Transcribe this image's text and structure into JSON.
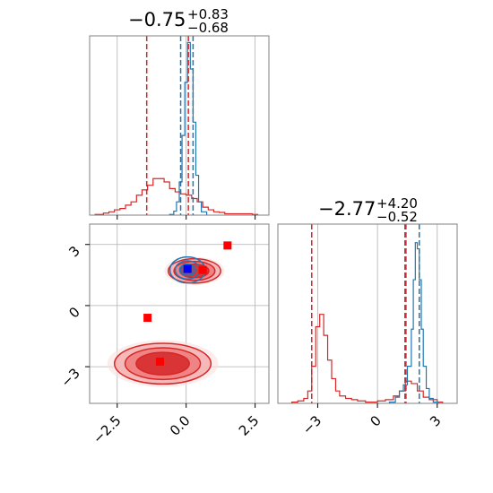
{
  "colors": {
    "red": "#d62728",
    "blue": "#1f77b4",
    "grid": "#b0b0b0",
    "marker": "#ff0000",
    "marker_blue": "#0000ff"
  },
  "chart_data": {
    "type": "corner",
    "parameters": [
      {
        "title": {
          "median": "−0.75",
          "upper": "+0.83",
          "lower": "−0.68"
        },
        "xlim": [
          -3.5,
          3.0
        ],
        "ticks": [
          -2.5,
          0.0,
          2.5
        ],
        "tick_labels": [
          "−2.5",
          "0.0",
          "2.5"
        ],
        "red_lines": [
          -1.43,
          0.08
        ],
        "blue_lines": [
          -0.2,
          0.25
        ]
      },
      {
        "title": {
          "median": "−2.77",
          "upper": "+4.20",
          "lower": "−0.52"
        },
        "xlim": [
          -5.0,
          4.0
        ],
        "ticks": [
          -3,
          0,
          3
        ],
        "tick_labels": [
          "−3",
          "0",
          "3"
        ],
        "red_lines": [
          -3.3,
          1.43
        ],
        "blue_lines": [
          1.38,
          2.1
        ]
      }
    ],
    "joint": {
      "ylim": [
        -4.8,
        4.0
      ],
      "yticks": [
        3,
        0,
        -3
      ],
      "ytick_labels": [
        "3",
        "0",
        "−3"
      ],
      "red_markers": [
        [
          1.5,
          2.95
        ],
        [
          0.6,
          1.75
        ],
        [
          -1.4,
          -0.6
        ],
        [
          -0.95,
          -2.75
        ]
      ],
      "blue_marker": [
        0.05,
        1.8
      ],
      "red_clusters": [
        {
          "cx": -0.85,
          "cy": -2.85,
          "rx": 1.75,
          "ry": 1.0
        },
        {
          "cx": 0.3,
          "cy": 1.7,
          "rx": 0.95,
          "ry": 0.6
        }
      ],
      "blue_cluster": {
        "cx": 0.05,
        "cy": 1.75,
        "rx": 0.4,
        "ry": 0.4
      }
    },
    "hist1_red": [
      [
        -3.3,
        0.01
      ],
      [
        -3.0,
        0.03
      ],
      [
        -2.8,
        0.05
      ],
      [
        -2.6,
        0.08
      ],
      [
        -2.4,
        0.1
      ],
      [
        -2.2,
        0.15
      ],
      [
        -2.0,
        0.2
      ],
      [
        -1.8,
        0.3
      ],
      [
        -1.6,
        0.38
      ],
      [
        -1.4,
        0.45
      ],
      [
        -1.2,
        0.55
      ],
      [
        -1.0,
        0.55
      ],
      [
        -0.8,
        0.5
      ],
      [
        -0.6,
        0.4
      ],
      [
        -0.4,
        0.35
      ],
      [
        -0.2,
        0.32
      ],
      [
        0.0,
        0.3
      ],
      [
        0.2,
        0.25
      ],
      [
        0.4,
        0.2
      ],
      [
        0.6,
        0.12
      ],
      [
        0.8,
        0.08
      ],
      [
        1.0,
        0.05
      ],
      [
        1.2,
        0.04
      ],
      [
        1.4,
        0.02
      ],
      [
        1.7,
        0.02
      ],
      [
        2.0,
        0.02
      ],
      [
        2.4,
        0.01
      ]
    ],
    "hist1_blue": [
      [
        -0.6,
        0.01
      ],
      [
        -0.45,
        0.06
      ],
      [
        -0.35,
        0.2
      ],
      [
        -0.25,
        0.5
      ],
      [
        -0.15,
        1.2
      ],
      [
        -0.05,
        2.0
      ],
      [
        0.05,
        2.6
      ],
      [
        0.15,
        2.2
      ],
      [
        0.25,
        1.4
      ],
      [
        0.35,
        0.6
      ],
      [
        0.45,
        0.2
      ],
      [
        0.55,
        0.05
      ]
    ],
    "hist2_red": [
      [
        -4.3,
        0.01
      ],
      [
        -4.0,
        0.02
      ],
      [
        -3.7,
        0.04
      ],
      [
        -3.5,
        0.1
      ],
      [
        -3.3,
        0.3
      ],
      [
        -3.1,
        0.62
      ],
      [
        -2.9,
        0.72
      ],
      [
        -2.7,
        0.55
      ],
      [
        -2.5,
        0.35
      ],
      [
        -2.3,
        0.2
      ],
      [
        -2.1,
        0.1
      ],
      [
        -1.9,
        0.06
      ],
      [
        -1.6,
        0.04
      ],
      [
        -1.3,
        0.03
      ],
      [
        -1.0,
        0.02
      ],
      [
        -0.6,
        0.01
      ],
      [
        0.0,
        0.02
      ],
      [
        0.4,
        0.03
      ],
      [
        0.8,
        0.06
      ],
      [
        1.1,
        0.1
      ],
      [
        1.4,
        0.18
      ],
      [
        1.7,
        0.16
      ],
      [
        2.0,
        0.1
      ],
      [
        2.3,
        0.05
      ],
      [
        2.6,
        0.03
      ],
      [
        3.0,
        0.01
      ]
    ],
    "hist2_blue": [
      [
        0.6,
        0.01
      ],
      [
        0.9,
        0.05
      ],
      [
        1.1,
        0.1
      ],
      [
        1.3,
        0.15
      ],
      [
        1.5,
        0.3
      ],
      [
        1.7,
        0.6
      ],
      [
        1.8,
        1.0
      ],
      [
        1.9,
        1.3
      ],
      [
        2.0,
        1.25
      ],
      [
        2.1,
        1.0
      ],
      [
        2.2,
        0.6
      ],
      [
        2.3,
        0.3
      ],
      [
        2.45,
        0.12
      ],
      [
        2.6,
        0.04
      ],
      [
        2.8,
        0.01
      ]
    ]
  }
}
